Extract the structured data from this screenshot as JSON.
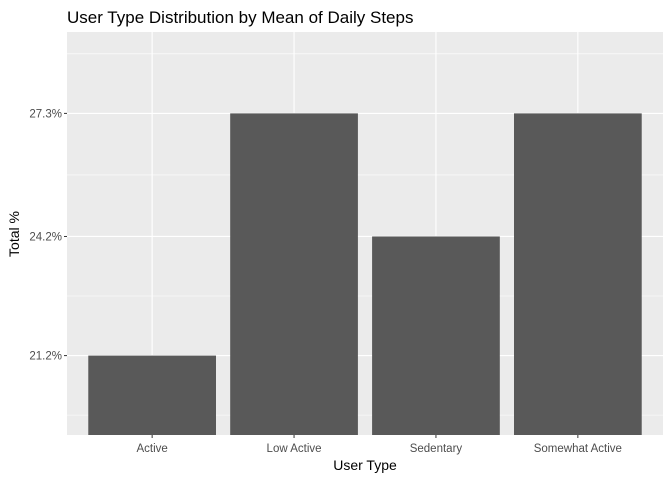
{
  "chart_data": {
    "type": "bar",
    "title": "User Type Distribution by Mean of Daily Steps",
    "xlabel": "User Type",
    "ylabel": "Total %",
    "categories": [
      "Active",
      "Low Active",
      "Sedentary",
      "Somewhat Active"
    ],
    "values": [
      21.2,
      27.3,
      24.2,
      27.3
    ],
    "y_ticks": [
      21.2,
      24.2,
      27.3
    ],
    "y_tick_labels": [
      "21.2%",
      "24.2%",
      "27.3%"
    ],
    "ylim": [
      19.2,
      29.35
    ],
    "grid": true,
    "legend": "none",
    "colors": {
      "bar": "#595959",
      "panel": "#ebebeb",
      "grid_major": "#ffffff",
      "tick_text": "#4d4d4d"
    }
  }
}
